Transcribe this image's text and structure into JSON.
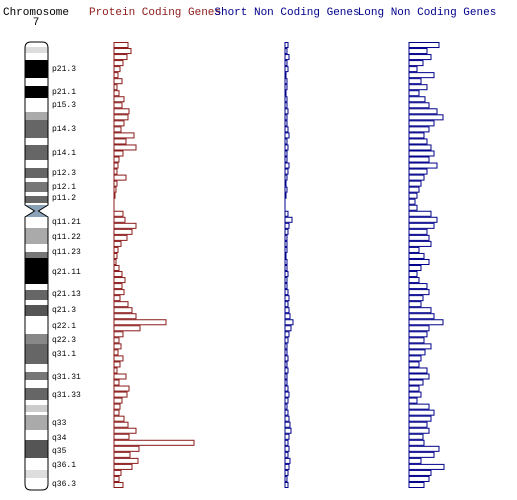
{
  "chart_data": {
    "type": "bar",
    "chromosome_label": "Chromosome",
    "chromosome": "7",
    "bands": [
      "p21.3",
      "p21.1",
      "p15.3",
      "p14.3",
      "p14.1",
      "p12.3",
      "p12.1",
      "p11.2",
      "q11.21",
      "q11.22",
      "q11.23",
      "q21.11",
      "q21.13",
      "q21.3",
      "q22.1",
      "q22.3",
      "q31.1",
      "q31.31",
      "q31.33",
      "q33",
      "q34",
      "q35",
      "q36.1",
      "q36.3"
    ],
    "series": [
      {
        "name": "Protein Coding Genes",
        "color": "#8b1a1a",
        "values": [
          14,
          17,
          13,
          9,
          6,
          4,
          8,
          3,
          5,
          10,
          8,
          15,
          14,
          10,
          7,
          20,
          12,
          22,
          9,
          5,
          4,
          3,
          12,
          3,
          2,
          1,
          0,
          0,
          9,
          11,
          22,
          18,
          13,
          7,
          4,
          3,
          2,
          5,
          8,
          11,
          8,
          10,
          6,
          14,
          18,
          22,
          52,
          26,
          9,
          5,
          7,
          4,
          9,
          6,
          3,
          12,
          5,
          15,
          13,
          8,
          6,
          5,
          10,
          14,
          22,
          15,
          80,
          25,
          16,
          24,
          18,
          7,
          5,
          9
        ]
      },
      {
        "name": "Short Non Coding Genes",
        "color": "#00008b",
        "values": [
          3,
          2,
          4,
          2,
          3,
          1,
          2,
          2,
          1,
          2,
          2,
          3,
          2,
          2,
          3,
          4,
          2,
          3,
          2,
          2,
          4,
          3,
          2,
          1,
          2,
          1,
          0,
          0,
          3,
          7,
          4,
          3,
          2,
          2,
          2,
          1,
          2,
          2,
          3,
          2,
          2,
          3,
          4,
          3,
          4,
          5,
          8,
          6,
          4,
          3,
          2,
          2,
          3,
          2,
          3,
          2,
          2,
          3,
          4,
          3,
          2,
          3,
          4,
          5,
          6,
          4,
          3,
          4,
          3,
          5,
          4,
          3,
          2,
          3
        ]
      },
      {
        "name": "Long Non Coding Genes",
        "color": "#00008b",
        "values": [
          30,
          18,
          22,
          14,
          8,
          25,
          12,
          18,
          10,
          16,
          20,
          28,
          34,
          25,
          20,
          15,
          18,
          22,
          25,
          20,
          28,
          18,
          15,
          12,
          10,
          8,
          6,
          8,
          22,
          28,
          25,
          18,
          20,
          22,
          10,
          15,
          20,
          12,
          8,
          10,
          18,
          20,
          14,
          12,
          22,
          25,
          34,
          20,
          18,
          15,
          22,
          16,
          12,
          10,
          18,
          20,
          14,
          10,
          12,
          8,
          20,
          25,
          22,
          18,
          20,
          14,
          15,
          30,
          25,
          12,
          35,
          22,
          20,
          15
        ]
      }
    ]
  }
}
